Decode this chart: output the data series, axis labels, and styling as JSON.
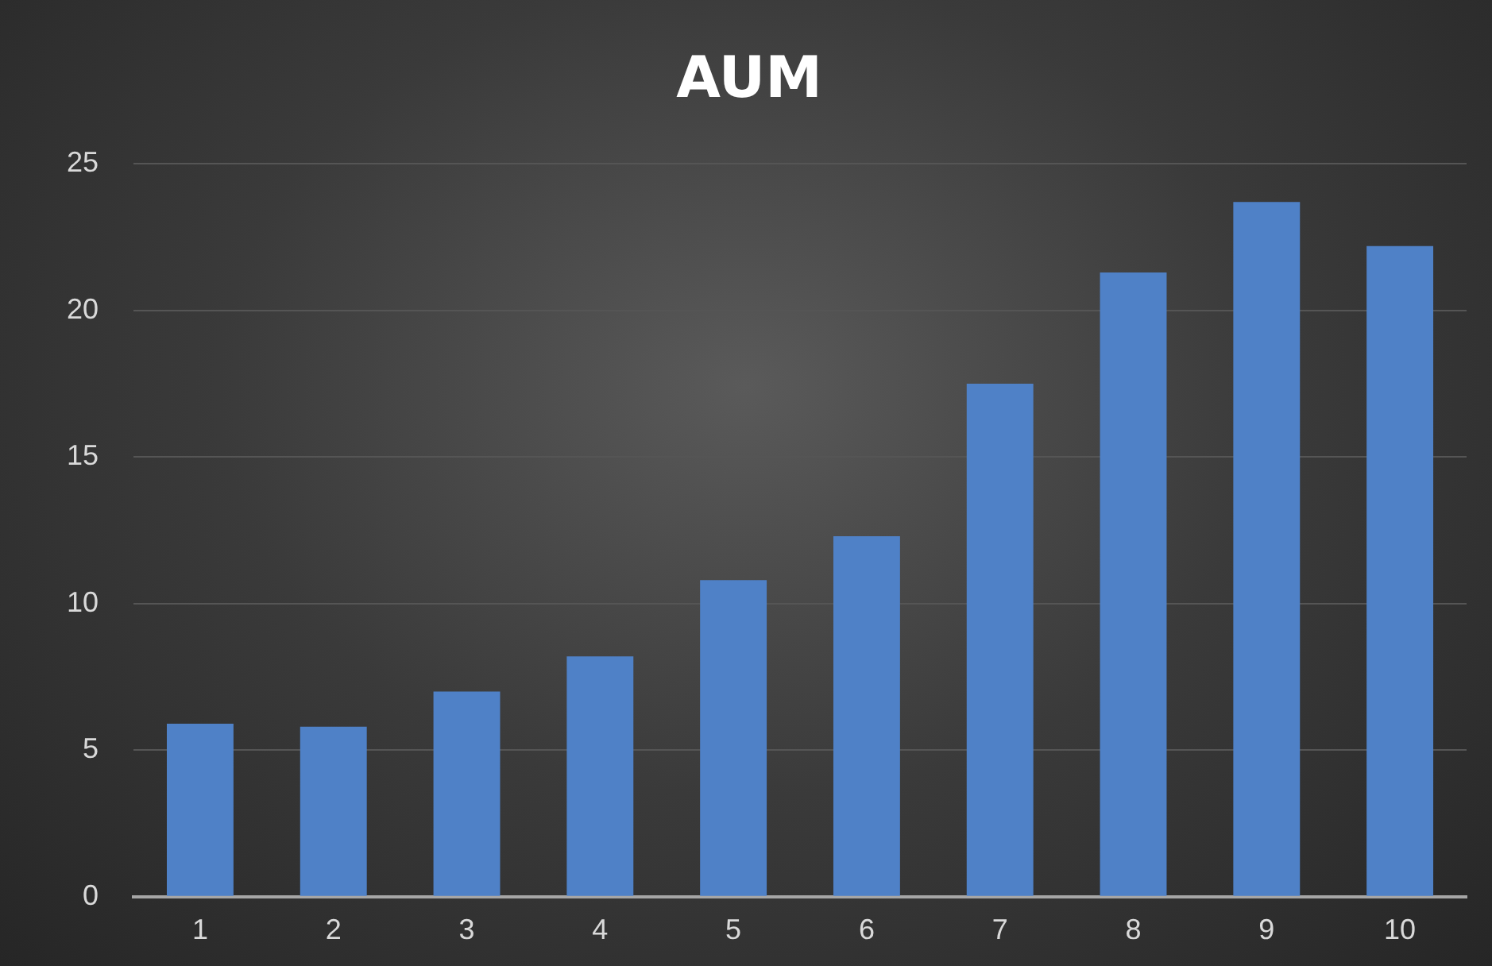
{
  "chart_data": {
    "type": "bar",
    "title": "AUM",
    "categories": [
      "1",
      "2",
      "3",
      "4",
      "5",
      "6",
      "7",
      "8",
      "9",
      "10"
    ],
    "values": [
      5.9,
      5.8,
      7.0,
      8.2,
      10.8,
      12.3,
      17.5,
      21.3,
      23.7,
      22.2
    ],
    "color": "#4f81c7",
    "ylim": [
      0,
      25
    ],
    "yticks": [
      0,
      5,
      10,
      15,
      20,
      25
    ],
    "grid": "y",
    "legend": false
  }
}
